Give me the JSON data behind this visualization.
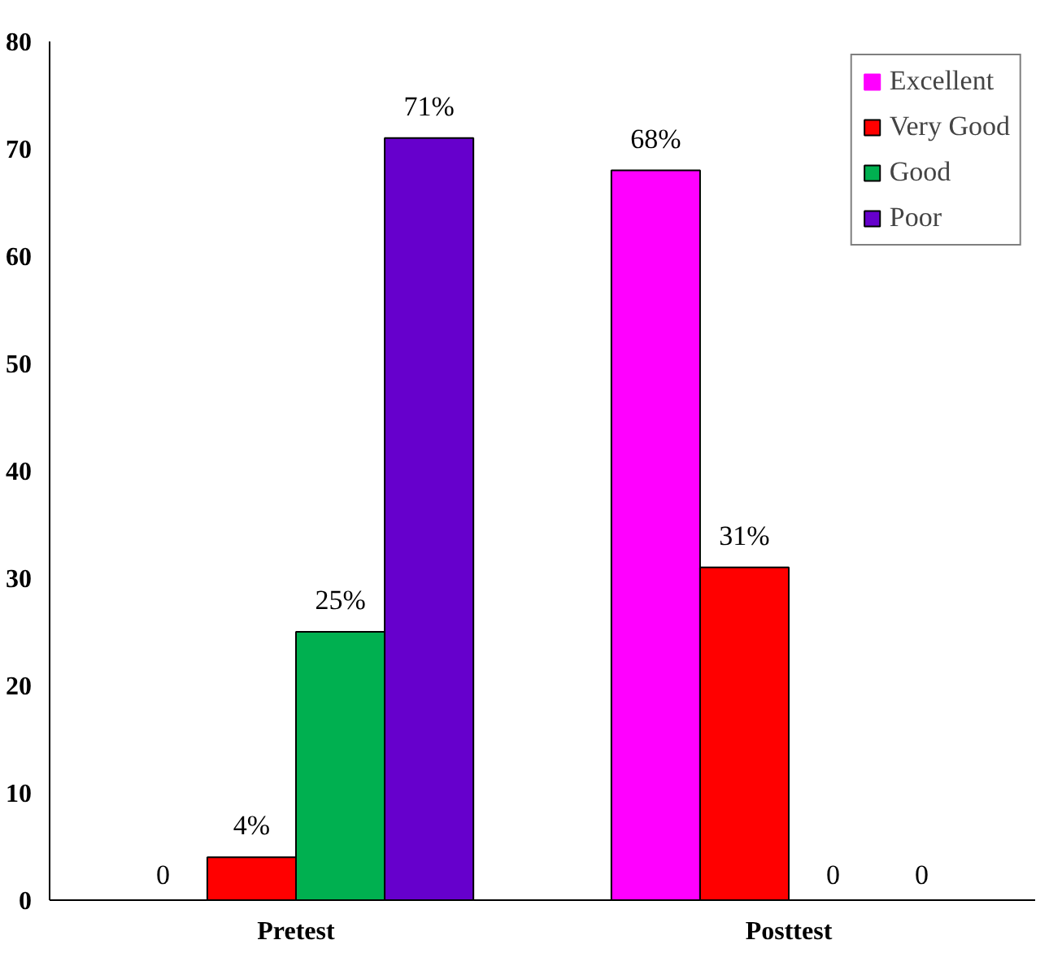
{
  "chart_data": {
    "type": "bar",
    "categories": [
      "Pretest",
      "Posttest"
    ],
    "series": [
      {
        "name": "Excellent",
        "color": "#ff00ff",
        "values": [
          0,
          68
        ],
        "value_labels": [
          "0",
          "68%"
        ]
      },
      {
        "name": "Very Good",
        "color": "#ff0000",
        "values": [
          4,
          31
        ],
        "value_labels": [
          "4%",
          "31%"
        ]
      },
      {
        "name": "Good",
        "color": "#00b050",
        "values": [
          25,
          0
        ],
        "value_labels": [
          "25%",
          "0"
        ]
      },
      {
        "name": "Poor",
        "color": "#6600cc",
        "values": [
          71,
          0
        ],
        "value_labels": [
          "71%",
          "0"
        ]
      }
    ],
    "ylim": [
      0,
      80
    ],
    "yticks": [
      0,
      10,
      20,
      30,
      40,
      50,
      60,
      70,
      80
    ],
    "grid": false,
    "legend": "top right"
  }
}
